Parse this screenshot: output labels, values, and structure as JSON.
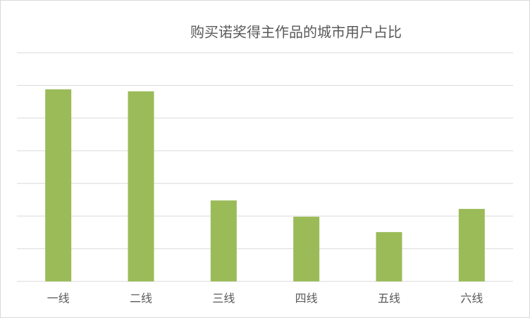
{
  "chart_data": {
    "type": "bar",
    "title": "购买诺奖得主作品的城市用户占比",
    "categories": [
      "一线",
      "二线",
      "三线",
      "四线",
      "五线",
      "六线"
    ],
    "values": [
      5.88,
      5.82,
      2.48,
      1.98,
      1.51,
      2.22
    ],
    "color": "#9bbb59",
    "ylim": [
      0,
      7
    ],
    "yticks": [
      0,
      1,
      2,
      3,
      4,
      5,
      6,
      7
    ],
    "grid": true
  }
}
